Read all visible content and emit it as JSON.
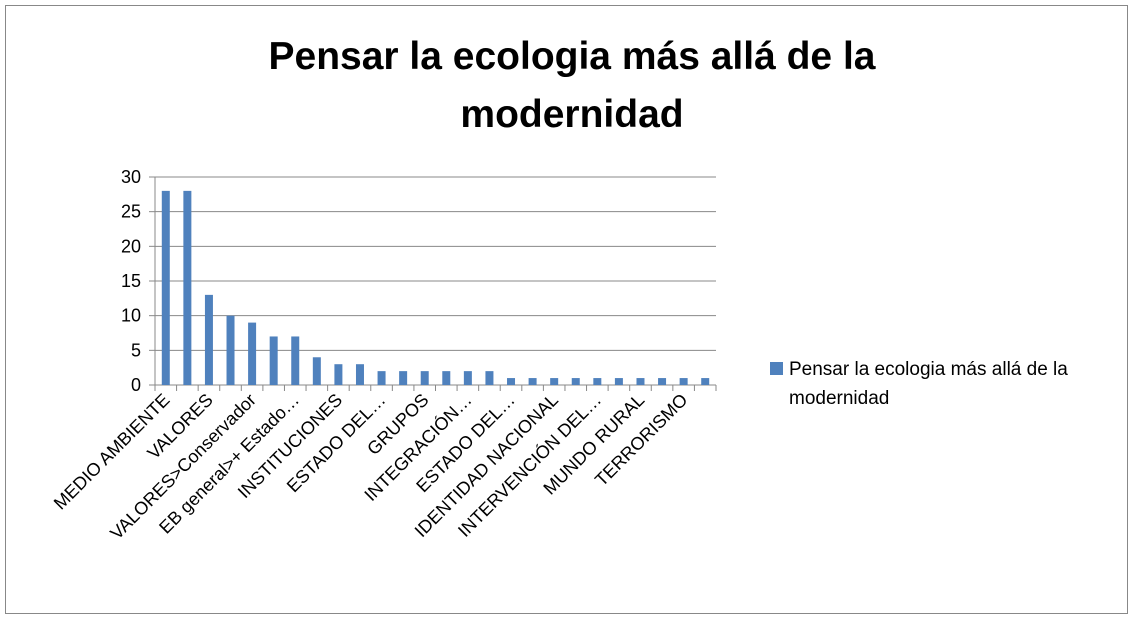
{
  "chart_data": {
    "type": "bar",
    "title": "Pensar la ecologia más allá de la modernidad",
    "categories": [
      "MEDIO AMBIENTE",
      null,
      "VALORES",
      null,
      "VALORES>Conservador",
      null,
      "EB general>+ Estado…",
      null,
      "INSTITUCIONES",
      null,
      "ESTADO DEL…",
      null,
      "GRUPOS",
      null,
      "INTEGRACIÓN…",
      null,
      "ESTADO DEL…",
      null,
      "IDENTIDAD NACIONAL",
      null,
      "INTERVENCIÓN DEL…",
      null,
      "MUNDO RURAL",
      null,
      "TERRORISMO",
      null
    ],
    "series": [
      {
        "name": "Pensar la ecologia más allá de la modernidad",
        "color": "#4f81bd",
        "values": [
          28,
          28,
          13,
          10,
          9,
          7,
          7,
          4,
          3,
          3,
          2,
          2,
          2,
          2,
          2,
          2,
          1,
          1,
          1,
          1,
          1,
          1,
          1,
          1,
          1,
          1
        ]
      }
    ],
    "ylim": [
      0,
      30
    ],
    "yticks": [
      0,
      5,
      10,
      15,
      20,
      25,
      30
    ],
    "grid": true,
    "legend": "right"
  }
}
